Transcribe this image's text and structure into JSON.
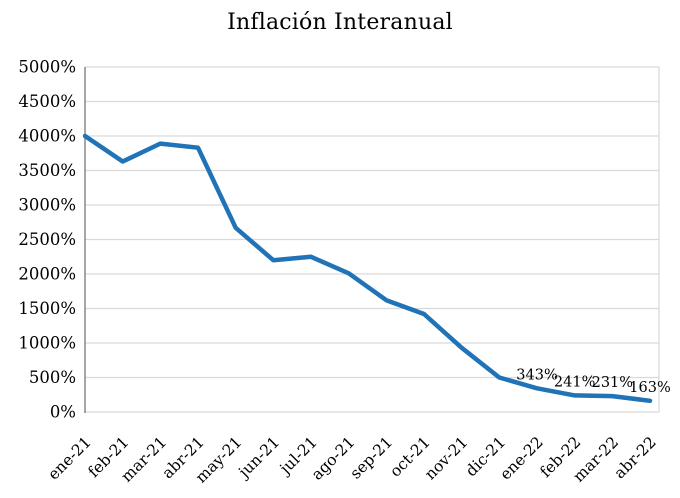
{
  "chart_data": {
    "type": "line",
    "title": "Inflación Interanual",
    "categories": [
      "ene-21",
      "feb-21",
      "mar-21",
      "abr-21",
      "may-21",
      "jun-21",
      "jul-21",
      "ago-21",
      "sep-21",
      "oct-21",
      "nov-21",
      "dic-21",
      "ene-22",
      "feb-22",
      "mar-22",
      "abr-22"
    ],
    "values": [
      4000,
      3630,
      3890,
      3830,
      2670,
      2200,
      2250,
      2010,
      1620,
      1420,
      930,
      500,
      343,
      241,
      231,
      163
    ],
    "point_labels": [
      null,
      null,
      null,
      null,
      null,
      null,
      null,
      null,
      null,
      null,
      null,
      null,
      "343%",
      "241%",
      "231%",
      "163%"
    ],
    "xlabel": "",
    "ylabel": "",
    "ylim": [
      0,
      5000
    ],
    "y_tick_step": 500,
    "y_tick_labels": [
      "0%",
      "500%",
      "1000%",
      "1500%",
      "2000%",
      "2500%",
      "3000%",
      "3500%",
      "4000%",
      "4500%",
      "5000%"
    ],
    "grid": true,
    "legend": false,
    "line_color": "#1F73B6",
    "gridline_color": "#D9D9D9",
    "axis_line_color": "#808080",
    "border_color": "#D9D9D9",
    "text_color": "#000000"
  }
}
